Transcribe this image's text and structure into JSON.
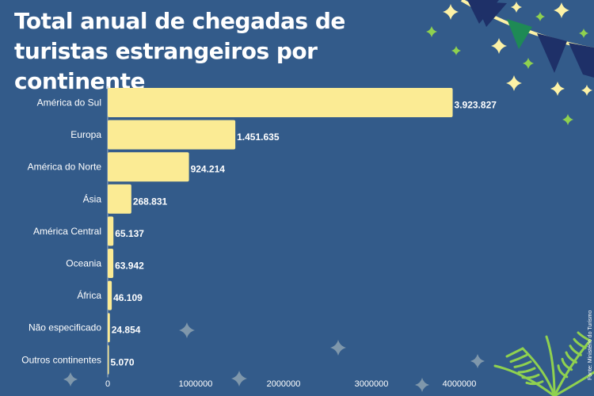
{
  "title": "Total anual de chegadas de turistas estrangeiros por continente",
  "source": "Fonte: Ministério do Turismo",
  "colors": {
    "background": "#335b8a",
    "bar": "#fbeb94",
    "text": "#ffffff",
    "star_yellow": "#fdf2a6",
    "star_green": "#8fd14f",
    "star_gray": "#7f97ab",
    "pennant_navy": "#1e3068",
    "pennant_green": "#1e8a55"
  },
  "chart_data": {
    "type": "bar",
    "orientation": "horizontal",
    "title": "Total anual de chegadas de turistas estrangeiros por continente",
    "categories": [
      "América do Sul",
      "Europa",
      "América do Norte",
      "Ásia",
      "América Central",
      "Oceania",
      "África",
      "Não especificado",
      "Outros continentes"
    ],
    "values": [
      3923827,
      1451635,
      924214,
      268831,
      65137,
      63942,
      46109,
      24854,
      5070
    ],
    "value_labels": [
      "3.923.827",
      "1.451.635",
      "924.214",
      "268.831",
      "65.137",
      "63.942",
      "46.109",
      "24.854",
      "5.070"
    ],
    "xticks": [
      0,
      1000000,
      2000000,
      3000000,
      4000000
    ],
    "xtick_labels": [
      "0",
      "1000000",
      "2000000",
      "3000000",
      "4000000"
    ],
    "xlim": [
      0,
      4000000
    ],
    "grid": false,
    "legend": "none"
  }
}
